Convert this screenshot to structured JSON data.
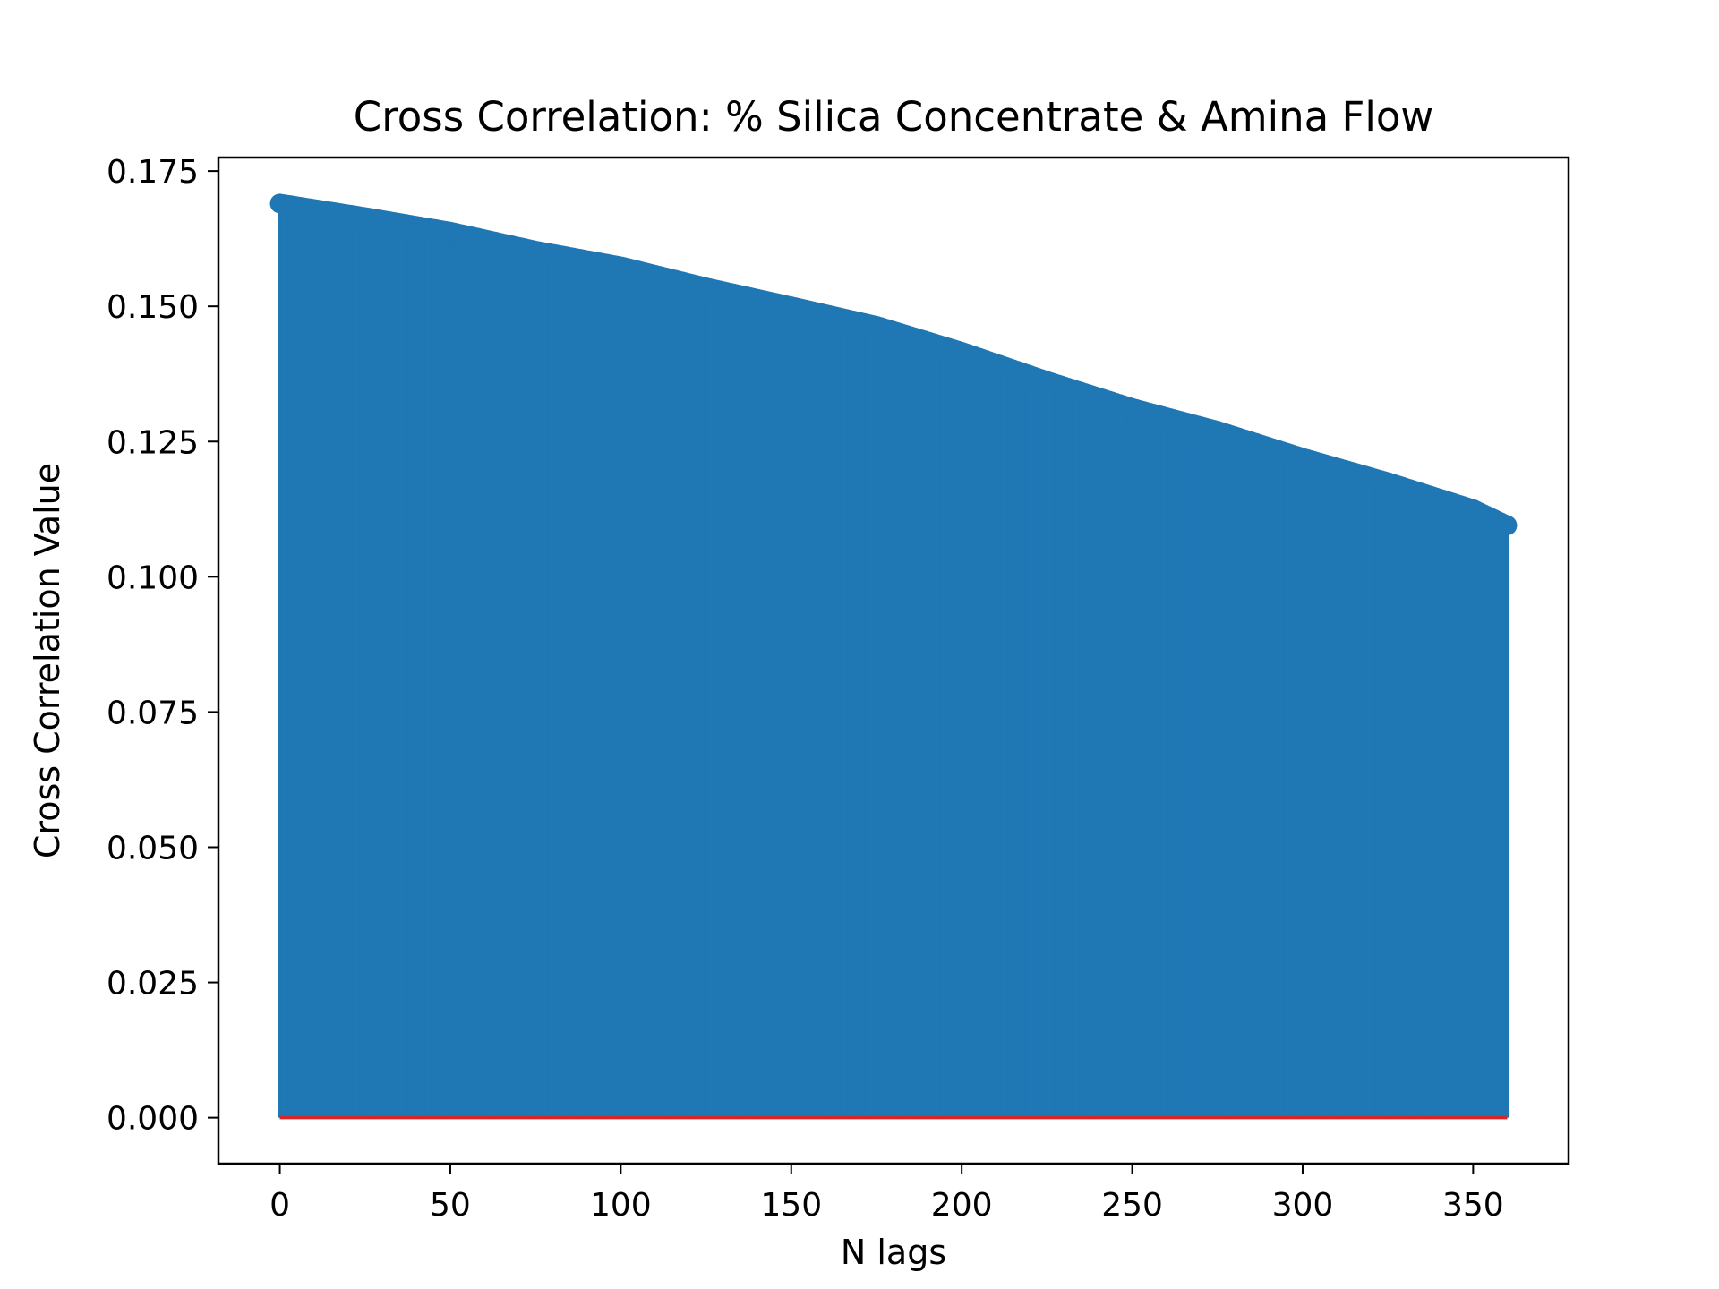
{
  "chart_data": {
    "type": "stem",
    "title": "Cross Correlation: % Silica Concentrate & Amina Flow",
    "xlabel": "N lags",
    "ylabel": "Cross Correlation Value",
    "xlim": [
      -18,
      378
    ],
    "ylim": [
      -0.0085,
      0.1775
    ],
    "xticks": [
      0,
      50,
      100,
      150,
      200,
      250,
      300,
      350
    ],
    "xtick_labels": [
      "0",
      "50",
      "100",
      "150",
      "200",
      "250",
      "300",
      "350"
    ],
    "yticks": [
      0.0,
      0.025,
      0.05,
      0.075,
      0.1,
      0.125,
      0.15,
      0.175
    ],
    "ytick_labels": [
      "0.000",
      "0.025",
      "0.050",
      "0.075",
      "0.100",
      "0.125",
      "0.150",
      "0.175"
    ],
    "grid": false,
    "lag_range": [
      0,
      360
    ],
    "profile": {
      "x": [
        0,
        25,
        50,
        75,
        100,
        125,
        150,
        175,
        200,
        225,
        250,
        275,
        300,
        325,
        350,
        360
      ],
      "y": [
        0.169,
        0.1665,
        0.1638,
        0.1603,
        0.1574,
        0.1535,
        0.15,
        0.1464,
        0.1416,
        0.1362,
        0.1312,
        0.127,
        0.122,
        0.1175,
        0.1125,
        0.1095
      ]
    },
    "colors": {
      "stem": "#1f77b4",
      "baseline": "#d62728",
      "axes": "#000000"
    }
  }
}
